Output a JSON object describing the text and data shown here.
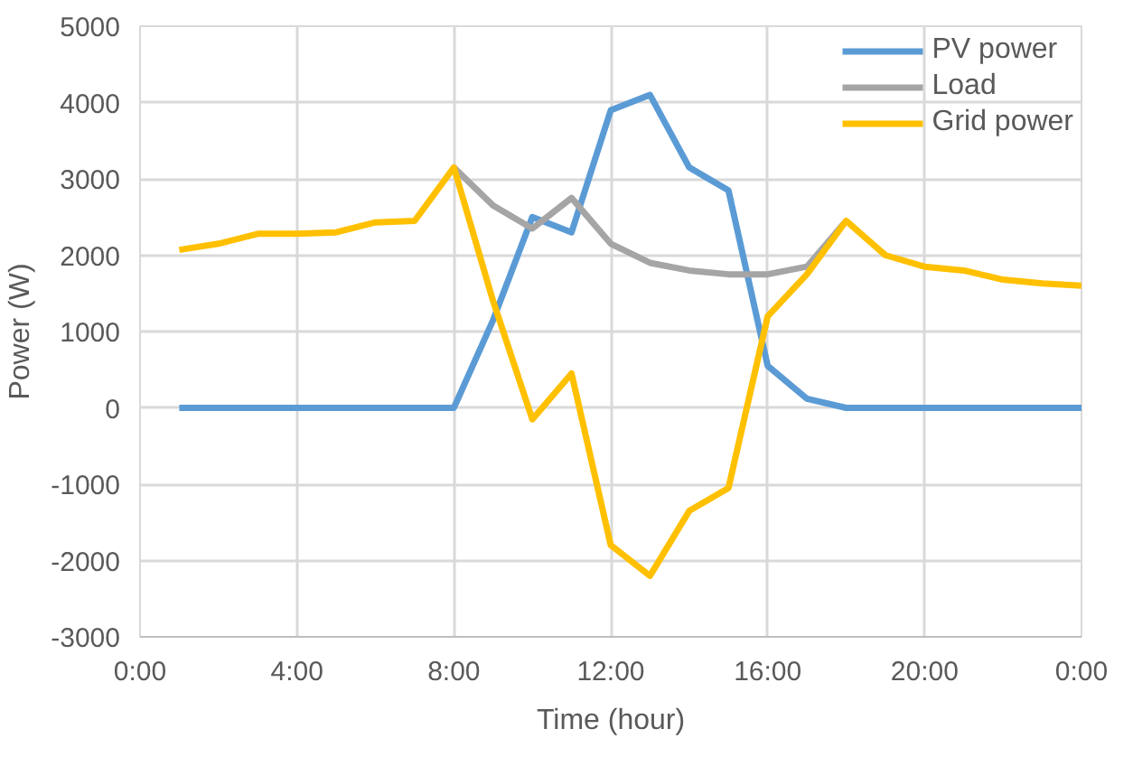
{
  "chart_data": {
    "type": "line",
    "xlabel": "Time (hour)",
    "ylabel": "Power (W)",
    "x": [
      1,
      2,
      3,
      4,
      5,
      6,
      7,
      8,
      9,
      10,
      11,
      12,
      13,
      14,
      15,
      16,
      17,
      18,
      19,
      20,
      21,
      22,
      23,
      24
    ],
    "series": [
      {
        "name": "PV power",
        "color": "#5b9bd5",
        "values": [
          0,
          0,
          0,
          0,
          0,
          0,
          0,
          0,
          1150,
          2500,
          2300,
          3900,
          4100,
          3150,
          2850,
          550,
          120,
          0,
          0,
          0,
          0,
          0,
          0,
          0
        ]
      },
      {
        "name": "Load",
        "color": "#a5a5a5",
        "values": [
          null,
          null,
          null,
          null,
          null,
          null,
          null,
          3150,
          2650,
          2350,
          2750,
          2150,
          1900,
          1800,
          1750,
          1750,
          1850,
          2450,
          null,
          null,
          null,
          null,
          null,
          null
        ]
      },
      {
        "name": "Grid power",
        "color": "#ffc000",
        "values": [
          2070,
          2150,
          2280,
          2280,
          2300,
          2430,
          2450,
          3150,
          1400,
          -150,
          450,
          -1800,
          -2200,
          -1350,
          -1050,
          1200,
          1750,
          2450,
          2000,
          1850,
          1800,
          1680,
          1630,
          1600
        ]
      }
    ],
    "xlim": [
      0,
      24
    ],
    "ylim": [
      -3000,
      5000
    ],
    "xticks": [
      {
        "value": 0,
        "label": "0:00"
      },
      {
        "value": 4,
        "label": "4:00"
      },
      {
        "value": 8,
        "label": "8:00"
      },
      {
        "value": 12,
        "label": "12:00"
      },
      {
        "value": 16,
        "label": "16:00"
      },
      {
        "value": 20,
        "label": "20:00"
      },
      {
        "value": 24,
        "label": "0:00"
      }
    ],
    "yticks": [
      -3000,
      -2000,
      -1000,
      0,
      1000,
      2000,
      3000,
      4000,
      5000
    ],
    "grid": true,
    "legend": "top right",
    "marker": "none",
    "line_style": "solid"
  }
}
